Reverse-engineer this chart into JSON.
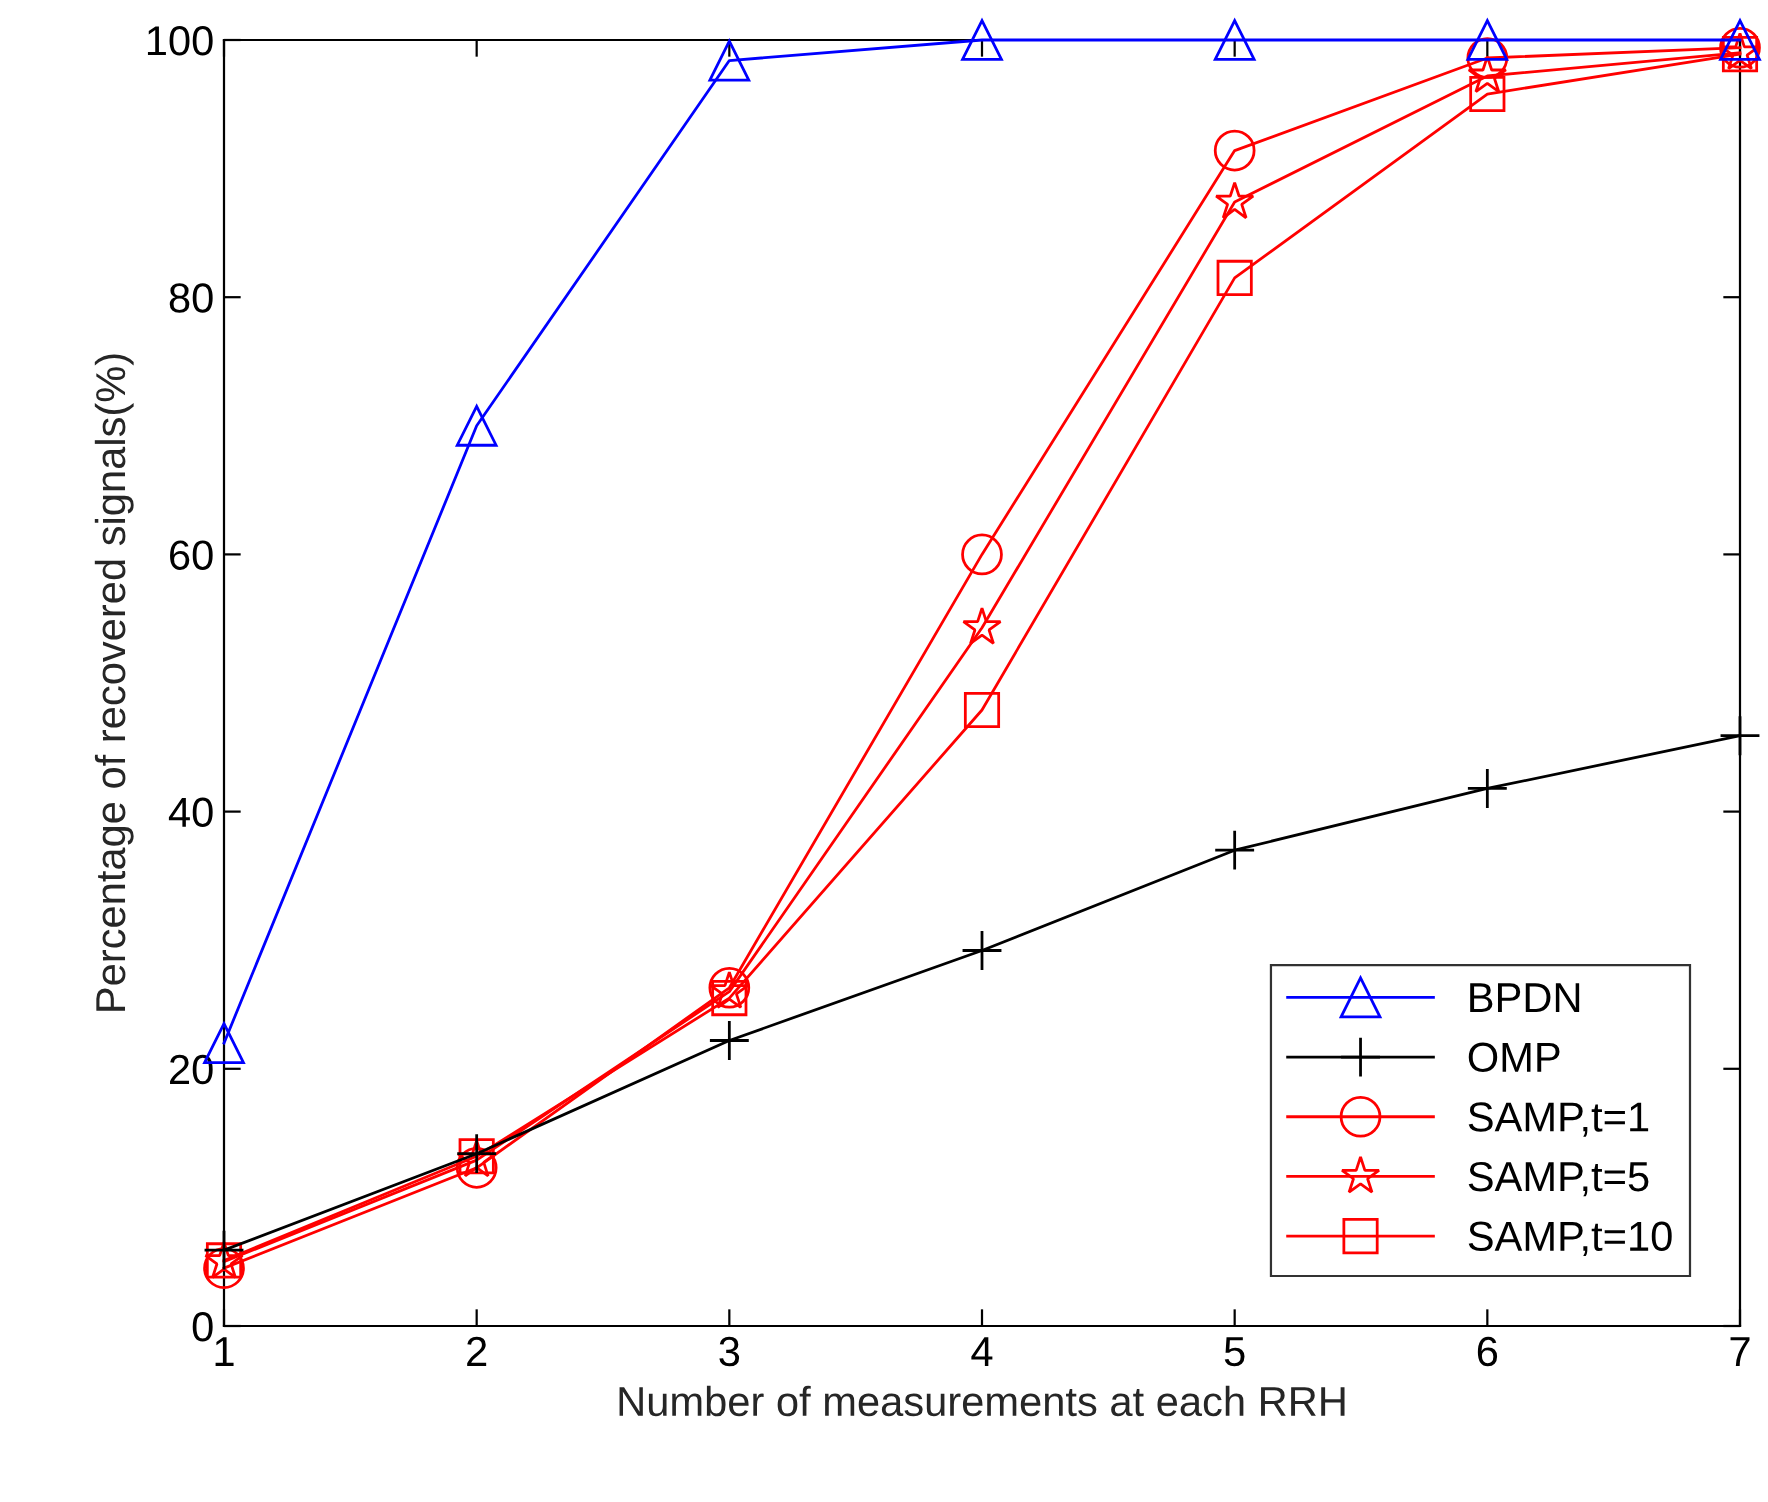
{
  "chart_data": {
    "type": "line",
    "xlabel": "Number of measurements at each RRH",
    "ylabel": "Percentage of recovered signals(%)",
    "x": [
      1,
      2,
      3,
      4,
      5,
      6,
      7
    ],
    "xlim": [
      1,
      7
    ],
    "xticks": [
      1,
      2,
      3,
      4,
      5,
      6,
      7
    ],
    "ylim": [
      0,
      100
    ],
    "yticks": [
      0,
      20,
      40,
      60,
      80,
      100
    ],
    "grid": false,
    "legend": "bottom right",
    "series": [
      {
        "name": "BPDN",
        "color": "#0000ff",
        "marker": "triangle",
        "values": [
          22,
          70,
          98.4,
          100,
          100,
          100,
          100
        ]
      },
      {
        "name": "OMP",
        "color": "#000000",
        "marker": "cross",
        "values": [
          5.9,
          13.4,
          22.2,
          29.2,
          37,
          41.8,
          45.9
        ]
      },
      {
        "name": "SAMP,t=1",
        "color": "#ff0000",
        "marker": "circle",
        "values": [
          4.5,
          12.3,
          26.3,
          60,
          91.4,
          98.6,
          99.4
        ]
      },
      {
        "name": "SAMP,t=5",
        "color": "#ff0000",
        "marker": "star",
        "values": [
          5,
          12.9,
          26,
          54.3,
          87.4,
          97.2,
          99
        ]
      },
      {
        "name": "SAMP,t=10",
        "color": "#ff0000",
        "marker": "square",
        "values": [
          5.1,
          13.2,
          25.5,
          47.9,
          81.5,
          95.8,
          98.9
        ]
      }
    ]
  }
}
